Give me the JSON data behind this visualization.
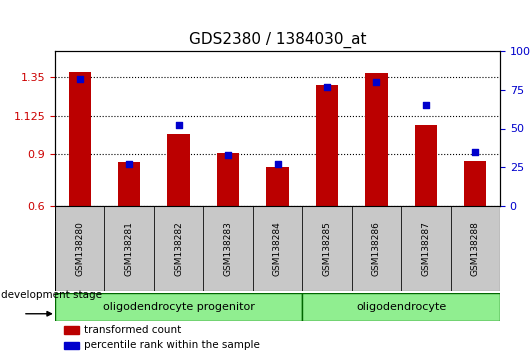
{
  "title": "GDS2380 / 1384030_at",
  "samples": [
    "GSM138280",
    "GSM138281",
    "GSM138282",
    "GSM138283",
    "GSM138284",
    "GSM138285",
    "GSM138286",
    "GSM138287",
    "GSM138288"
  ],
  "transformed_count": [
    1.38,
    0.855,
    1.02,
    0.905,
    0.825,
    1.3,
    1.37,
    1.07,
    0.86
  ],
  "percentile_rank": [
    82,
    27,
    52,
    33,
    27,
    77,
    80,
    65,
    35
  ],
  "ylim_left": [
    0.6,
    1.5
  ],
  "ylim_right": [
    0,
    100
  ],
  "yticks_left": [
    0.6,
    0.9,
    1.125,
    1.35
  ],
  "yticks_right": [
    0,
    25,
    50,
    75,
    100
  ],
  "ytick_labels_left": [
    "0.6",
    "0.9",
    "1.125",
    "1.35"
  ],
  "ytick_labels_right": [
    "0",
    "25",
    "50",
    "75",
    "100%"
  ],
  "bar_color": "#bb0000",
  "dot_color": "#0000cc",
  "plot_bg_color": "#ffffff",
  "groups": [
    {
      "label": "oligodendrocyte progenitor",
      "start": 0,
      "end": 5,
      "color": "#90ee90"
    },
    {
      "label": "oligodendrocyte",
      "start": 5,
      "end": 9,
      "color": "#90ee90"
    }
  ],
  "dev_stage_label": "development stage",
  "legend_items": [
    {
      "label": "transformed count",
      "color": "#bb0000"
    },
    {
      "label": "percentile rank within the sample",
      "color": "#0000cc"
    }
  ],
  "bar_width": 0.45,
  "bar_bottom": 0.6,
  "tick_bg_color": "#c8c8c8",
  "group_border_color": "#006600"
}
